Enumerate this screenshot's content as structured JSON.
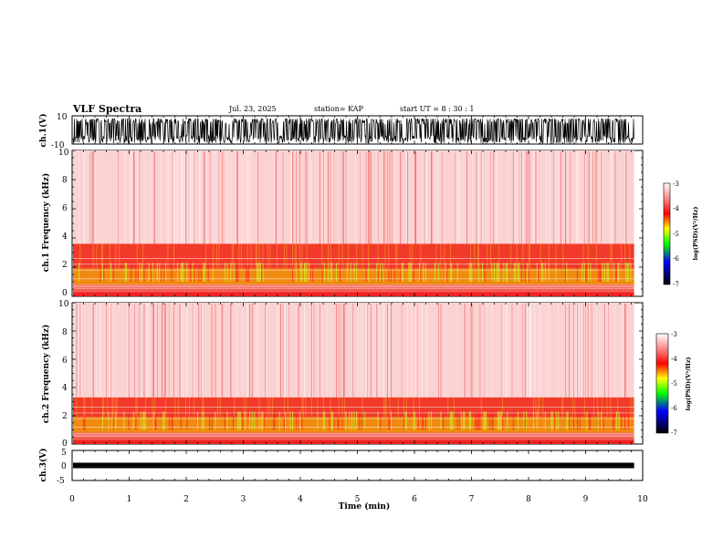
{
  "header": {
    "title": "VLF Spectra",
    "date": "Jul. 23, 2025",
    "station": "station= KAP",
    "start": "start UT = 8 : 30 : 1"
  },
  "chart_data": [
    {
      "type": "line",
      "panel": "ch1-waveform",
      "ylabel": "ch.1(V)",
      "ylim": [
        -10,
        10
      ],
      "ytick_labels": [
        "10",
        "-10"
      ],
      "xlim": [
        0,
        10
      ],
      "data_extent_min": 9.85,
      "style": "dense black noise, mostly saturated between about -10 and +8 V"
    },
    {
      "type": "heatmap",
      "panel": "ch1-spectrogram",
      "ylabel": "ch.1 Frequency (kHz)",
      "ylim": [
        0,
        10
      ],
      "ytick_labels": [
        "0",
        "2",
        "4",
        "6",
        "8",
        "10"
      ],
      "xlim": [
        0,
        10
      ],
      "data_extent_min": 9.85,
      "bands_khz": [
        {
          "from": 0.0,
          "to": 0.3,
          "level": "red"
        },
        {
          "from": 0.8,
          "to": 1.9,
          "level": "yellow-green"
        },
        {
          "from": 1.9,
          "to": 3.6,
          "level": "red"
        },
        {
          "from": 3.6,
          "to": 10.0,
          "level": "speckled light red"
        }
      ]
    },
    {
      "type": "heatmap",
      "panel": "ch2-spectrogram",
      "ylabel": "ch.2 Frequency (kHz)",
      "ylim": [
        0,
        10
      ],
      "ytick_labels": [
        "0",
        "2",
        "4",
        "6",
        "8",
        "10"
      ],
      "xlim": [
        0,
        10
      ],
      "data_extent_min": 9.85,
      "bands_khz": [
        {
          "from": 0.0,
          "to": 0.3,
          "level": "red"
        },
        {
          "from": 0.8,
          "to": 1.9,
          "level": "yellow-green"
        },
        {
          "from": 1.9,
          "to": 3.3,
          "level": "red"
        },
        {
          "from": 3.3,
          "to": 10.0,
          "level": "speckled light red"
        }
      ]
    },
    {
      "type": "line",
      "panel": "ch3-waveform",
      "ylabel": "ch.3(V)",
      "ylim": [
        -5,
        5
      ],
      "ytick_labels": [
        "5",
        "0",
        "-5"
      ],
      "xlim": [
        0,
        10
      ],
      "data_extent_min": 9.85,
      "baseline_v": 0,
      "style": "thin black band around 0 V"
    }
  ],
  "x_axis": {
    "label": "Time (min)",
    "ticks": [
      "0",
      "1",
      "2",
      "3",
      "4",
      "5",
      "6",
      "7",
      "8",
      "9",
      "10"
    ]
  },
  "colorbar": {
    "label": "log(PSD)(V²/Hz)",
    "range": [
      -7,
      -3
    ],
    "tick_labels": [
      "-3",
      "-4",
      "-5",
      "-6",
      "-7"
    ],
    "colors": [
      "#ffffff",
      "#ff0000",
      "#ffff00",
      "#00ff00",
      "#0000ff",
      "#000000"
    ]
  }
}
